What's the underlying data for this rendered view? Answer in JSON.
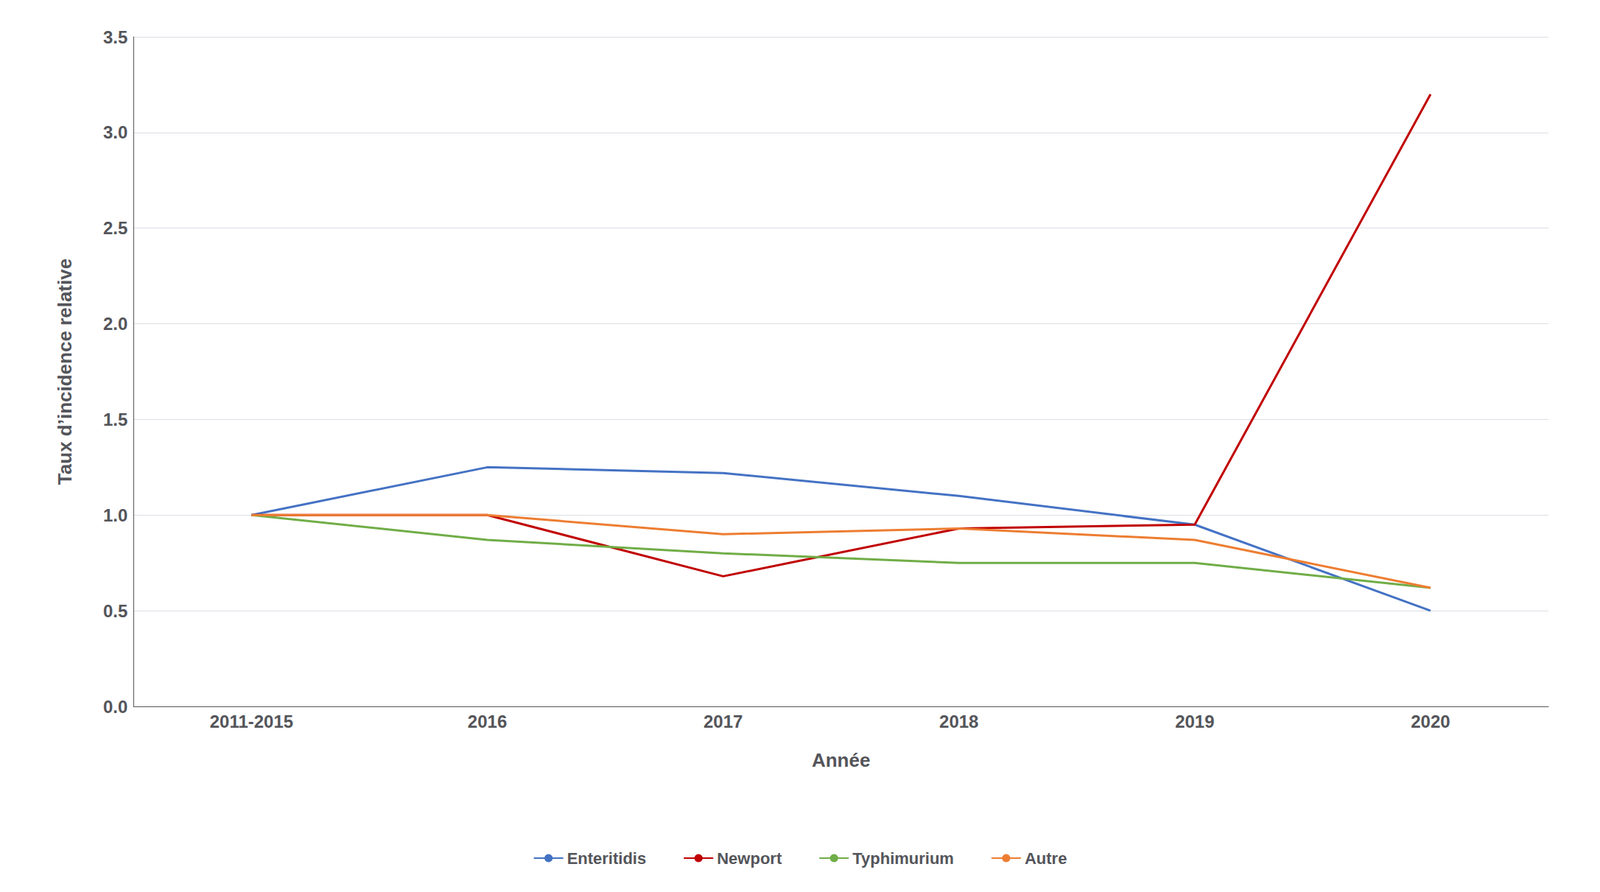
{
  "chart_data": {
    "type": "line",
    "xlabel": "Année",
    "ylabel": "Taux d’incidence relative",
    "categories": [
      "2011-2015",
      "2016",
      "2017",
      "2018",
      "2019",
      "2020"
    ],
    "series": [
      {
        "name": "Enteritidis",
        "color": "#4472C4",
        "values": [
          1.0,
          1.25,
          1.22,
          1.1,
          0.95,
          0.5
        ]
      },
      {
        "name": "Newport",
        "color": "#C00000",
        "values": [
          1.0,
          1.0,
          0.68,
          0.93,
          0.95,
          3.2
        ]
      },
      {
        "name": "Typhimurium",
        "color": "#70AD47",
        "values": [
          1.0,
          0.87,
          0.8,
          0.75,
          0.75,
          0.62
        ]
      },
      {
        "name": "Autre",
        "color": "#ED7D31",
        "values": [
          1.0,
          1.0,
          0.9,
          0.93,
          0.87,
          0.62
        ]
      }
    ],
    "ylim": [
      0,
      3.5
    ],
    "yticks": [
      {
        "value": 0,
        "label": "0.0"
      },
      0.5,
      {
        "value": 1.0,
        "label": "1.0"
      },
      1.5,
      {
        "value": 2.0,
        "label": "2.0"
      },
      2.5,
      {
        "value": 3.0,
        "label": "3.0"
      },
      3.5
    ],
    "grid": true,
    "legend": "bottom"
  }
}
